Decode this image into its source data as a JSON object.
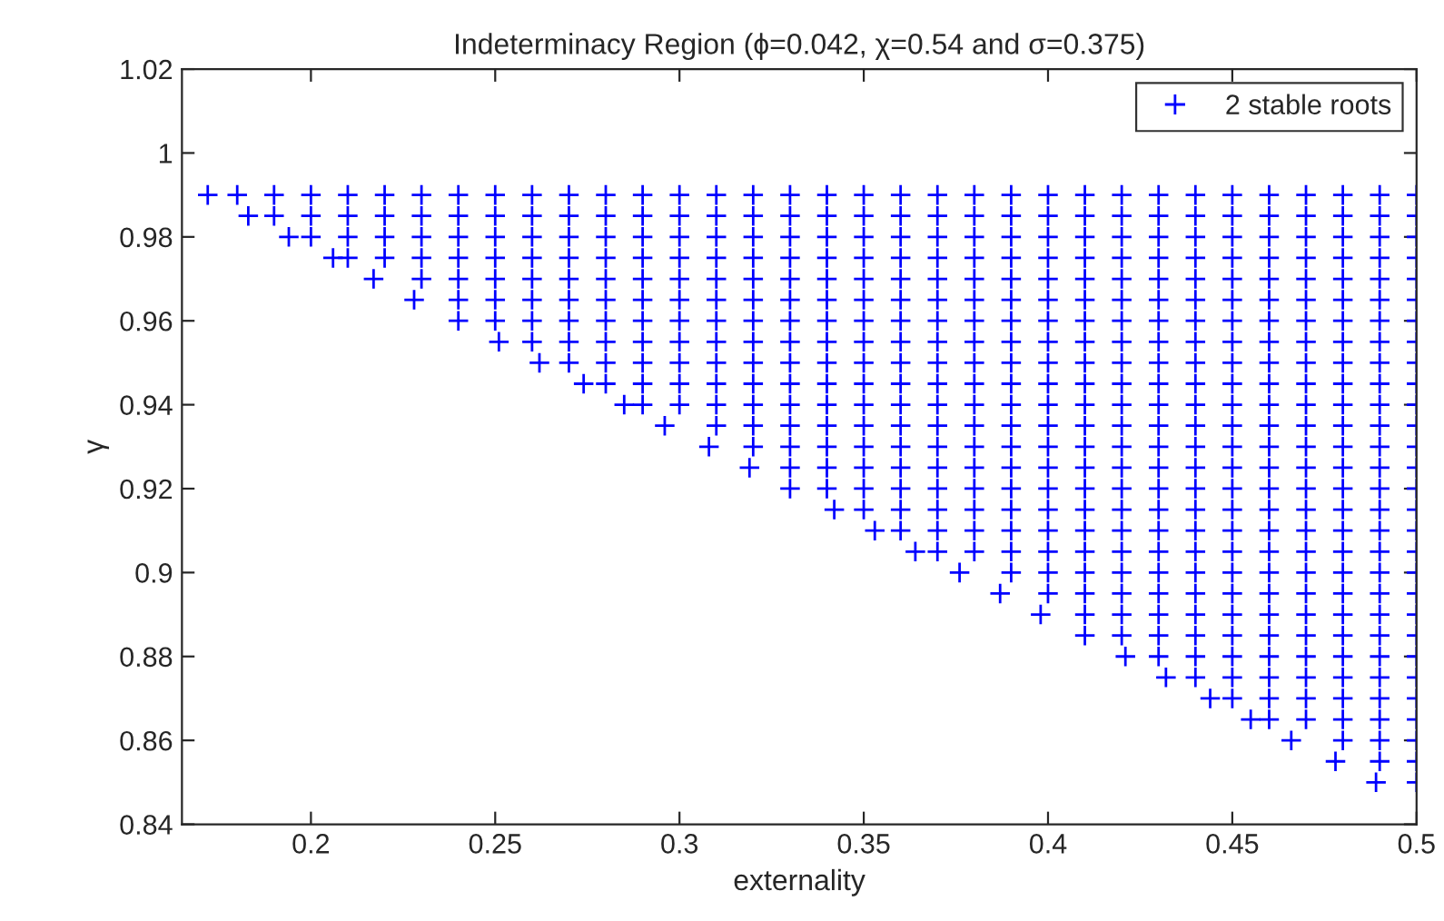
{
  "chart_data": {
    "type": "scatter",
    "title": "Indeterminacy Region (ϕ=0.042, χ=0.54 and σ=0.375)",
    "xlabel": "externality",
    "ylabel": "γ",
    "xlim": [
      0.165,
      0.5
    ],
    "xticks": [
      0.2,
      0.25,
      0.3,
      0.35,
      0.4,
      0.45,
      0.5
    ],
    "ylim": [
      0.84,
      1.02
    ],
    "yticks": [
      0.84,
      0.86,
      0.88,
      0.9,
      0.92,
      0.94,
      0.96,
      0.98,
      1,
      1.02
    ],
    "marker": "cross",
    "grid": false,
    "legend": "top right",
    "series": [
      {
        "name": "2 stable roots",
        "color": "#0000ff",
        "x": [
          0.172,
          0.18,
          0.19,
          0.2,
          0.21,
          0.22,
          0.23,
          0.24,
          0.25,
          0.26,
          0.27,
          0.28,
          0.29,
          0.3,
          0.31,
          0.32,
          0.33,
          0.34,
          0.35,
          0.36,
          0.37,
          0.38,
          0.39,
          0.4,
          0.41,
          0.42,
          0.43,
          0.44,
          0.45,
          0.46,
          0.47,
          0.48,
          0.49,
          0.5
        ],
        "values": [
          0.99,
          0.99,
          0.99,
          0.99,
          0.99,
          0.99,
          0.99,
          0.99,
          0.99,
          0.99,
          0.99,
          0.99,
          0.99,
          0.99,
          0.99,
          0.99,
          0.99,
          0.99,
          0.99,
          0.99,
          0.99,
          0.99,
          0.99,
          0.99,
          0.99,
          0.99,
          0.99,
          0.99,
          0.99,
          0.99,
          0.99,
          0.99,
          0.99,
          0.99
        ]
      },
      {
        "color": "#0000ff",
        "x": [
          0.183,
          0.19,
          0.2,
          0.21,
          0.22,
          0.23,
          0.24,
          0.25,
          0.26,
          0.27,
          0.28,
          0.29,
          0.3,
          0.31,
          0.32,
          0.33,
          0.34,
          0.35,
          0.36,
          0.37,
          0.38,
          0.39,
          0.4,
          0.41,
          0.42,
          0.43,
          0.44,
          0.45,
          0.46,
          0.47,
          0.48,
          0.49,
          0.5
        ],
        "values": [
          0.985,
          0.985,
          0.985,
          0.985,
          0.985,
          0.985,
          0.985,
          0.985,
          0.985,
          0.985,
          0.985,
          0.985,
          0.985,
          0.985,
          0.985,
          0.985,
          0.985,
          0.985,
          0.985,
          0.985,
          0.985,
          0.985,
          0.985,
          0.985,
          0.985,
          0.985,
          0.985,
          0.985,
          0.985,
          0.985,
          0.985,
          0.985,
          0.985
        ]
      },
      {
        "color": "#0000ff",
        "x": [
          0.194,
          0.2,
          0.21,
          0.22,
          0.23,
          0.24,
          0.25,
          0.26,
          0.27,
          0.28,
          0.29,
          0.3,
          0.31,
          0.32,
          0.33,
          0.34,
          0.35,
          0.36,
          0.37,
          0.38,
          0.39,
          0.4,
          0.41,
          0.42,
          0.43,
          0.44,
          0.45,
          0.46,
          0.47,
          0.48,
          0.49,
          0.5
        ],
        "values": [
          0.98,
          0.98,
          0.98,
          0.98,
          0.98,
          0.98,
          0.98,
          0.98,
          0.98,
          0.98,
          0.98,
          0.98,
          0.98,
          0.98,
          0.98,
          0.98,
          0.98,
          0.98,
          0.98,
          0.98,
          0.98,
          0.98,
          0.98,
          0.98,
          0.98,
          0.98,
          0.98,
          0.98,
          0.98,
          0.98,
          0.98,
          0.98
        ]
      },
      {
        "color": "#0000ff",
        "x": [
          0.206,
          0.21,
          0.22,
          0.23,
          0.24,
          0.25,
          0.26,
          0.27,
          0.28,
          0.29,
          0.3,
          0.31,
          0.32,
          0.33,
          0.34,
          0.35,
          0.36,
          0.37,
          0.38,
          0.39,
          0.4,
          0.41,
          0.42,
          0.43,
          0.44,
          0.45,
          0.46,
          0.47,
          0.48,
          0.49,
          0.5
        ],
        "values": [
          0.975,
          0.975,
          0.975,
          0.975,
          0.975,
          0.975,
          0.975,
          0.975,
          0.975,
          0.975,
          0.975,
          0.975,
          0.975,
          0.975,
          0.975,
          0.975,
          0.975,
          0.975,
          0.975,
          0.975,
          0.975,
          0.975,
          0.975,
          0.975,
          0.975,
          0.975,
          0.975,
          0.975,
          0.975,
          0.975,
          0.975
        ]
      },
      {
        "color": "#0000ff",
        "x": [
          0.217,
          0.23,
          0.24,
          0.25,
          0.26,
          0.27,
          0.28,
          0.29,
          0.3,
          0.31,
          0.32,
          0.33,
          0.34,
          0.35,
          0.36,
          0.37,
          0.38,
          0.39,
          0.4,
          0.41,
          0.42,
          0.43,
          0.44,
          0.45,
          0.46,
          0.47,
          0.48,
          0.49,
          0.5
        ],
        "values": [
          0.97,
          0.97,
          0.97,
          0.97,
          0.97,
          0.97,
          0.97,
          0.97,
          0.97,
          0.97,
          0.97,
          0.97,
          0.97,
          0.97,
          0.97,
          0.97,
          0.97,
          0.97,
          0.97,
          0.97,
          0.97,
          0.97,
          0.97,
          0.97,
          0.97,
          0.97,
          0.97,
          0.97,
          0.97
        ]
      },
      {
        "color": "#0000ff",
        "x": [
          0.228,
          0.24,
          0.25,
          0.26,
          0.27,
          0.28,
          0.29,
          0.3,
          0.31,
          0.32,
          0.33,
          0.34,
          0.35,
          0.36,
          0.37,
          0.38,
          0.39,
          0.4,
          0.41,
          0.42,
          0.43,
          0.44,
          0.45,
          0.46,
          0.47,
          0.48,
          0.49,
          0.5
        ],
        "values": [
          0.965,
          0.965,
          0.965,
          0.965,
          0.965,
          0.965,
          0.965,
          0.965,
          0.965,
          0.965,
          0.965,
          0.965,
          0.965,
          0.965,
          0.965,
          0.965,
          0.965,
          0.965,
          0.965,
          0.965,
          0.965,
          0.965,
          0.965,
          0.965,
          0.965,
          0.965,
          0.965,
          0.965
        ]
      },
      {
        "color": "#0000ff",
        "x": [
          0.24,
          0.25,
          0.26,
          0.27,
          0.28,
          0.29,
          0.3,
          0.31,
          0.32,
          0.33,
          0.34,
          0.35,
          0.36,
          0.37,
          0.38,
          0.39,
          0.4,
          0.41,
          0.42,
          0.43,
          0.44,
          0.45,
          0.46,
          0.47,
          0.48,
          0.49,
          0.5
        ],
        "values": [
          0.96,
          0.96,
          0.96,
          0.96,
          0.96,
          0.96,
          0.96,
          0.96,
          0.96,
          0.96,
          0.96,
          0.96,
          0.96,
          0.96,
          0.96,
          0.96,
          0.96,
          0.96,
          0.96,
          0.96,
          0.96,
          0.96,
          0.96,
          0.96,
          0.96,
          0.96,
          0.96
        ]
      },
      {
        "color": "#0000ff",
        "x": [
          0.251,
          0.26,
          0.27,
          0.28,
          0.29,
          0.3,
          0.31,
          0.32,
          0.33,
          0.34,
          0.35,
          0.36,
          0.37,
          0.38,
          0.39,
          0.4,
          0.41,
          0.42,
          0.43,
          0.44,
          0.45,
          0.46,
          0.47,
          0.48,
          0.49,
          0.5
        ],
        "values": [
          0.955,
          0.955,
          0.955,
          0.955,
          0.955,
          0.955,
          0.955,
          0.955,
          0.955,
          0.955,
          0.955,
          0.955,
          0.955,
          0.955,
          0.955,
          0.955,
          0.955,
          0.955,
          0.955,
          0.955,
          0.955,
          0.955,
          0.955,
          0.955,
          0.955,
          0.955
        ]
      },
      {
        "color": "#0000ff",
        "x": [
          0.262,
          0.27,
          0.28,
          0.29,
          0.3,
          0.31,
          0.32,
          0.33,
          0.34,
          0.35,
          0.36,
          0.37,
          0.38,
          0.39,
          0.4,
          0.41,
          0.42,
          0.43,
          0.44,
          0.45,
          0.46,
          0.47,
          0.48,
          0.49,
          0.5
        ],
        "values": [
          0.95,
          0.95,
          0.95,
          0.95,
          0.95,
          0.95,
          0.95,
          0.95,
          0.95,
          0.95,
          0.95,
          0.95,
          0.95,
          0.95,
          0.95,
          0.95,
          0.95,
          0.95,
          0.95,
          0.95,
          0.95,
          0.95,
          0.95,
          0.95,
          0.95
        ]
      },
      {
        "color": "#0000ff",
        "x": [
          0.274,
          0.28,
          0.29,
          0.3,
          0.31,
          0.32,
          0.33,
          0.34,
          0.35,
          0.36,
          0.37,
          0.38,
          0.39,
          0.4,
          0.41,
          0.42,
          0.43,
          0.44,
          0.45,
          0.46,
          0.47,
          0.48,
          0.49,
          0.5
        ],
        "values": [
          0.945,
          0.945,
          0.945,
          0.945,
          0.945,
          0.945,
          0.945,
          0.945,
          0.945,
          0.945,
          0.945,
          0.945,
          0.945,
          0.945,
          0.945,
          0.945,
          0.945,
          0.945,
          0.945,
          0.945,
          0.945,
          0.945,
          0.945,
          0.945
        ]
      },
      {
        "color": "#0000ff",
        "x": [
          0.285,
          0.29,
          0.3,
          0.31,
          0.32,
          0.33,
          0.34,
          0.35,
          0.36,
          0.37,
          0.38,
          0.39,
          0.4,
          0.41,
          0.42,
          0.43,
          0.44,
          0.45,
          0.46,
          0.47,
          0.48,
          0.49,
          0.5
        ],
        "values": [
          0.94,
          0.94,
          0.94,
          0.94,
          0.94,
          0.94,
          0.94,
          0.94,
          0.94,
          0.94,
          0.94,
          0.94,
          0.94,
          0.94,
          0.94,
          0.94,
          0.94,
          0.94,
          0.94,
          0.94,
          0.94,
          0.94,
          0.94
        ]
      },
      {
        "color": "#0000ff",
        "x": [
          0.296,
          0.31,
          0.32,
          0.33,
          0.34,
          0.35,
          0.36,
          0.37,
          0.38,
          0.39,
          0.4,
          0.41,
          0.42,
          0.43,
          0.44,
          0.45,
          0.46,
          0.47,
          0.48,
          0.49,
          0.5
        ],
        "values": [
          0.935,
          0.935,
          0.935,
          0.935,
          0.935,
          0.935,
          0.935,
          0.935,
          0.935,
          0.935,
          0.935,
          0.935,
          0.935,
          0.935,
          0.935,
          0.935,
          0.935,
          0.935,
          0.935,
          0.935,
          0.935
        ]
      },
      {
        "color": "#0000ff",
        "x": [
          0.308,
          0.32,
          0.33,
          0.34,
          0.35,
          0.36,
          0.37,
          0.38,
          0.39,
          0.4,
          0.41,
          0.42,
          0.43,
          0.44,
          0.45,
          0.46,
          0.47,
          0.48,
          0.49,
          0.5
        ],
        "values": [
          0.93,
          0.93,
          0.93,
          0.93,
          0.93,
          0.93,
          0.93,
          0.93,
          0.93,
          0.93,
          0.93,
          0.93,
          0.93,
          0.93,
          0.93,
          0.93,
          0.93,
          0.93,
          0.93,
          0.93
        ]
      },
      {
        "color": "#0000ff",
        "x": [
          0.319,
          0.33,
          0.34,
          0.35,
          0.36,
          0.37,
          0.38,
          0.39,
          0.4,
          0.41,
          0.42,
          0.43,
          0.44,
          0.45,
          0.46,
          0.47,
          0.48,
          0.49,
          0.5
        ],
        "values": [
          0.925,
          0.925,
          0.925,
          0.925,
          0.925,
          0.925,
          0.925,
          0.925,
          0.925,
          0.925,
          0.925,
          0.925,
          0.925,
          0.925,
          0.925,
          0.925,
          0.925,
          0.925,
          0.925
        ]
      },
      {
        "color": "#0000ff",
        "x": [
          0.33,
          0.34,
          0.35,
          0.36,
          0.37,
          0.38,
          0.39,
          0.4,
          0.41,
          0.42,
          0.43,
          0.44,
          0.45,
          0.46,
          0.47,
          0.48,
          0.49,
          0.5
        ],
        "values": [
          0.92,
          0.92,
          0.92,
          0.92,
          0.92,
          0.92,
          0.92,
          0.92,
          0.92,
          0.92,
          0.92,
          0.92,
          0.92,
          0.92,
          0.92,
          0.92,
          0.92,
          0.92
        ]
      },
      {
        "color": "#0000ff",
        "x": [
          0.342,
          0.35,
          0.36,
          0.37,
          0.38,
          0.39,
          0.4,
          0.41,
          0.42,
          0.43,
          0.44,
          0.45,
          0.46,
          0.47,
          0.48,
          0.49,
          0.5
        ],
        "values": [
          0.915,
          0.915,
          0.915,
          0.915,
          0.915,
          0.915,
          0.915,
          0.915,
          0.915,
          0.915,
          0.915,
          0.915,
          0.915,
          0.915,
          0.915,
          0.915,
          0.915
        ]
      },
      {
        "color": "#0000ff",
        "x": [
          0.353,
          0.36,
          0.37,
          0.38,
          0.39,
          0.4,
          0.41,
          0.42,
          0.43,
          0.44,
          0.45,
          0.46,
          0.47,
          0.48,
          0.49,
          0.5
        ],
        "values": [
          0.91,
          0.91,
          0.91,
          0.91,
          0.91,
          0.91,
          0.91,
          0.91,
          0.91,
          0.91,
          0.91,
          0.91,
          0.91,
          0.91,
          0.91,
          0.91
        ]
      },
      {
        "color": "#0000ff",
        "x": [
          0.364,
          0.37,
          0.38,
          0.39,
          0.4,
          0.41,
          0.42,
          0.43,
          0.44,
          0.45,
          0.46,
          0.47,
          0.48,
          0.49,
          0.5
        ],
        "values": [
          0.905,
          0.905,
          0.905,
          0.905,
          0.905,
          0.905,
          0.905,
          0.905,
          0.905,
          0.905,
          0.905,
          0.905,
          0.905,
          0.905,
          0.905
        ]
      },
      {
        "color": "#0000ff",
        "x": [
          0.376,
          0.39,
          0.4,
          0.41,
          0.42,
          0.43,
          0.44,
          0.45,
          0.46,
          0.47,
          0.48,
          0.49,
          0.5
        ],
        "values": [
          0.9,
          0.9,
          0.9,
          0.9,
          0.9,
          0.9,
          0.9,
          0.9,
          0.9,
          0.9,
          0.9,
          0.9,
          0.9
        ]
      },
      {
        "color": "#0000ff",
        "x": [
          0.387,
          0.4,
          0.41,
          0.42,
          0.43,
          0.44,
          0.45,
          0.46,
          0.47,
          0.48,
          0.49,
          0.5
        ],
        "values": [
          0.895,
          0.895,
          0.895,
          0.895,
          0.895,
          0.895,
          0.895,
          0.895,
          0.895,
          0.895,
          0.895,
          0.895
        ]
      },
      {
        "color": "#0000ff",
        "x": [
          0.398,
          0.41,
          0.42,
          0.43,
          0.44,
          0.45,
          0.46,
          0.47,
          0.48,
          0.49,
          0.5
        ],
        "values": [
          0.89,
          0.89,
          0.89,
          0.89,
          0.89,
          0.89,
          0.89,
          0.89,
          0.89,
          0.89,
          0.89
        ]
      },
      {
        "color": "#0000ff",
        "x": [
          0.41,
          0.42,
          0.43,
          0.44,
          0.45,
          0.46,
          0.47,
          0.48,
          0.49,
          0.5
        ],
        "values": [
          0.885,
          0.885,
          0.885,
          0.885,
          0.885,
          0.885,
          0.885,
          0.885,
          0.885,
          0.885
        ]
      },
      {
        "color": "#0000ff",
        "x": [
          0.421,
          0.43,
          0.44,
          0.45,
          0.46,
          0.47,
          0.48,
          0.49,
          0.5
        ],
        "values": [
          0.88,
          0.88,
          0.88,
          0.88,
          0.88,
          0.88,
          0.88,
          0.88,
          0.88
        ]
      },
      {
        "color": "#0000ff",
        "x": [
          0.432,
          0.44,
          0.45,
          0.46,
          0.47,
          0.48,
          0.49,
          0.5
        ],
        "values": [
          0.875,
          0.875,
          0.875,
          0.875,
          0.875,
          0.875,
          0.875,
          0.875
        ]
      },
      {
        "color": "#0000ff",
        "x": [
          0.444,
          0.45,
          0.46,
          0.47,
          0.48,
          0.49,
          0.5
        ],
        "values": [
          0.87,
          0.87,
          0.87,
          0.87,
          0.87,
          0.87,
          0.87
        ]
      },
      {
        "color": "#0000ff",
        "x": [
          0.455,
          0.46,
          0.47,
          0.48,
          0.49,
          0.5
        ],
        "values": [
          0.865,
          0.865,
          0.865,
          0.865,
          0.865,
          0.865
        ]
      },
      {
        "color": "#0000ff",
        "x": [
          0.466,
          0.48,
          0.49,
          0.5
        ],
        "values": [
          0.86,
          0.86,
          0.86,
          0.86
        ]
      },
      {
        "color": "#0000ff",
        "x": [
          0.478,
          0.49,
          0.5
        ],
        "values": [
          0.855,
          0.855,
          0.855
        ]
      },
      {
        "color": "#0000ff",
        "x": [
          0.489,
          0.5
        ],
        "values": [
          0.85,
          0.85
        ]
      }
    ]
  }
}
